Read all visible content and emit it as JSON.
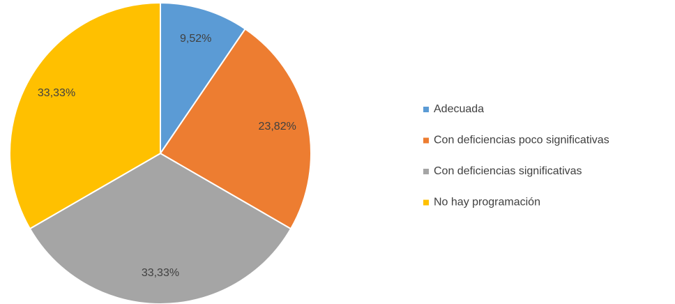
{
  "chart_data": {
    "type": "pie",
    "categories": [
      "Adecuada",
      "Con deficiencias poco significativas",
      "Con deficiencias significativas",
      "No hay programación"
    ],
    "values": [
      9.52,
      23.82,
      33.33,
      33.33
    ],
    "value_labels": [
      "9,52%",
      "23,82%",
      "33,33%",
      "33,33%"
    ],
    "colors": [
      "#5b9bd5",
      "#ed7d31",
      "#a5a5a5",
      "#ffc000"
    ],
    "legend": "right"
  }
}
